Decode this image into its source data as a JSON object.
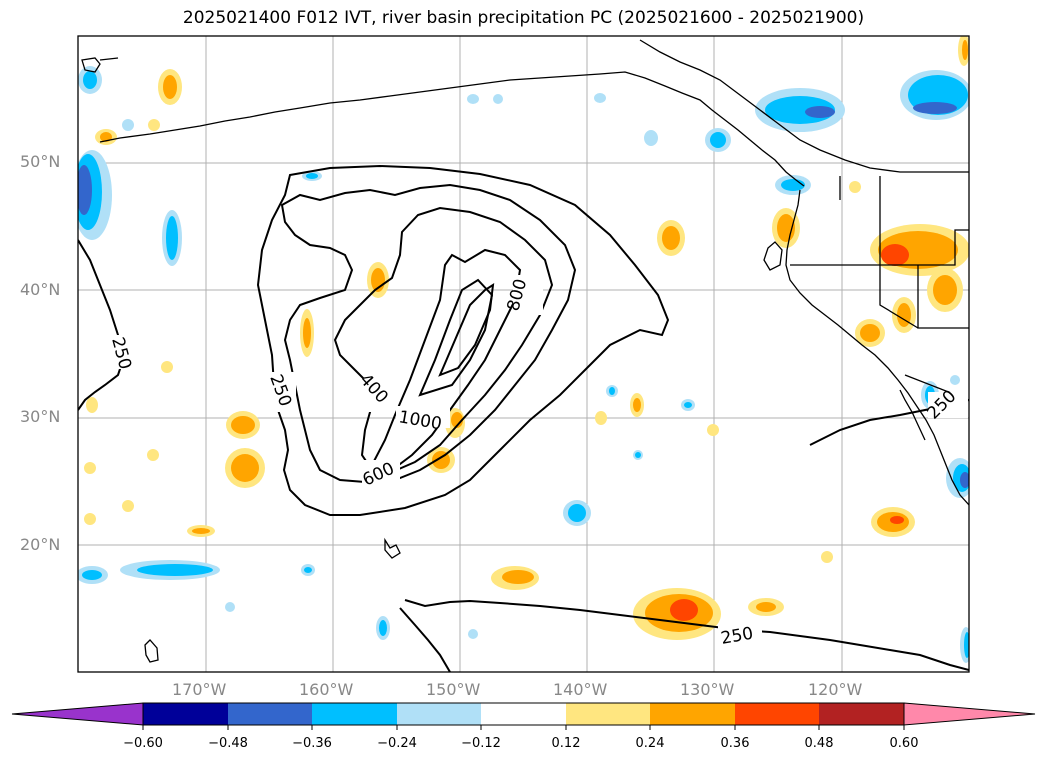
{
  "title": "2025021400 F012 IVT, river basin precipitation PC (2025021600 - 2025021900)",
  "lat_labels": [
    "50°N",
    "40°N",
    "30°N",
    "20°N"
  ],
  "lon_labels": [
    "170°W",
    "160°W",
    "150°W",
    "140°W",
    "130°W",
    "120°W"
  ],
  "contour_labels": [
    "250",
    "250",
    "400",
    "1000",
    "600",
    "800",
    "250",
    "250"
  ],
  "colorbar": {
    "ticks": [
      "−0.60",
      "−0.48",
      "−0.36",
      "−0.24",
      "−0.12",
      "0.12",
      "0.24",
      "0.36",
      "0.48",
      "0.60"
    ],
    "colors": [
      "#9933cc",
      "#000099",
      "#3366cc",
      "#00bfff",
      "#b0e0f7",
      "#ffffff",
      "#ffe680",
      "#ffa500",
      "#ff4500",
      "#b22222",
      "#ff88aa"
    ]
  }
}
